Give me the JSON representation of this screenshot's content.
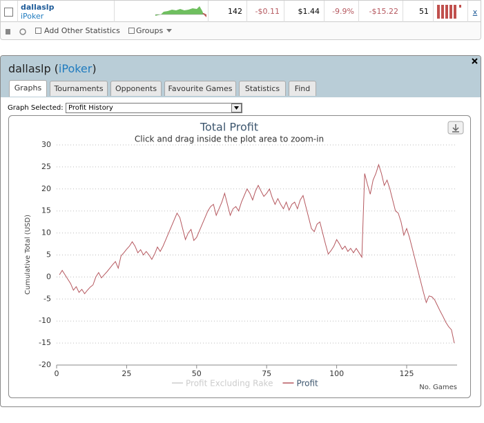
{
  "top_row": {
    "player": "dallaslp",
    "site": "iPoker",
    "cells": [
      "142",
      "-$0.11",
      "$1.44",
      "-9.9%",
      "-$15.22",
      "51"
    ],
    "remove": "x"
  },
  "toolbar": {
    "add": "Add Other Statistics",
    "groups": "Groups"
  },
  "panel": {
    "title_parts": [
      "dallaslp (",
      "iPoker",
      ")"
    ],
    "tabs": [
      "Graphs",
      "Tournaments",
      "Opponents",
      "Favourite Games",
      "Statistics",
      "Find"
    ],
    "graph_label": "Graph Selected:",
    "graph_selected": "Profit History"
  },
  "chart_data": {
    "type": "line",
    "title": "Total Profit",
    "subtitle": "Click and drag inside the plot area to zoom-in",
    "y_label": "Cumulative Total (USD)",
    "x_label": "No. Games",
    "xlim": [
      0,
      143
    ],
    "xticks": [
      0,
      25,
      50,
      75,
      100,
      125
    ],
    "ylim": [
      -20,
      30
    ],
    "yticks": [
      -20,
      -15,
      -10,
      -5,
      0,
      5,
      10,
      15,
      20,
      25,
      30
    ],
    "grid": true,
    "x": [
      1,
      2,
      3,
      4,
      5,
      6,
      7,
      8,
      9,
      10,
      11,
      12,
      13,
      14,
      15,
      16,
      17,
      18,
      19,
      20,
      21,
      22,
      23,
      24,
      25,
      26,
      27,
      28,
      29,
      30,
      31,
      32,
      33,
      34,
      35,
      36,
      37,
      38,
      39,
      40,
      41,
      42,
      43,
      44,
      45,
      46,
      47,
      48,
      49,
      50,
      51,
      52,
      53,
      54,
      55,
      56,
      57,
      58,
      59,
      60,
      61,
      62,
      63,
      64,
      65,
      66,
      67,
      68,
      69,
      70,
      71,
      72,
      73,
      74,
      75,
      76,
      77,
      78,
      79,
      80,
      81,
      82,
      83,
      84,
      85,
      86,
      87,
      88,
      89,
      90,
      91,
      92,
      93,
      94,
      95,
      96,
      97,
      98,
      99,
      100,
      101,
      102,
      103,
      104,
      105,
      106,
      107,
      108,
      109,
      110,
      111,
      112,
      113,
      114,
      115,
      116,
      117,
      118,
      119,
      120,
      121,
      122,
      123,
      124,
      125,
      126,
      127,
      128,
      129,
      130,
      131,
      132,
      133,
      134,
      135,
      136,
      137,
      138,
      139,
      140,
      141,
      142
    ],
    "series": [
      {
        "name": "Profit Excluding Rake",
        "color": "#cccccc",
        "visible": false
      },
      {
        "name": "Profit",
        "color": "#b5575e",
        "visible": true,
        "values": [
          0.5,
          1.5,
          0.5,
          -0.5,
          -1.5,
          -3,
          -2.2,
          -3.5,
          -2.8,
          -3.8,
          -3,
          -2.3,
          -1.8,
          0,
          1,
          -0.2,
          0.5,
          1.2,
          2,
          2.8,
          3.5,
          2,
          4.8,
          5.5,
          6.3,
          7,
          8,
          7,
          5.5,
          6.2,
          5,
          5.8,
          5,
          4,
          5.2,
          6.8,
          5.8,
          7,
          8.5,
          10,
          11.5,
          13,
          14.5,
          13.5,
          11,
          8.5,
          10,
          10.8,
          8.3,
          9,
          10.5,
          12,
          13.5,
          15,
          16,
          16.5,
          14,
          15.5,
          17,
          19,
          16.5,
          14,
          15.5,
          16,
          15,
          17,
          18.5,
          20,
          19,
          17.5,
          19.5,
          20.8,
          19.5,
          18.3,
          19,
          20,
          18,
          16.5,
          17.8,
          16.5,
          15.5,
          17,
          15.2,
          16.5,
          17,
          15.5,
          17.5,
          18.5,
          16,
          13.5,
          11,
          10.3,
          12,
          12.5,
          10,
          7.5,
          5.2,
          6,
          7,
          8.5,
          7.5,
          6.3,
          7,
          5.8,
          6.5,
          5.5,
          6.5,
          5.5,
          4.5,
          23.5,
          21,
          18.8,
          22,
          23.5,
          25.5,
          23.5,
          20.8,
          22,
          20,
          17.5,
          15,
          14.5,
          12.5,
          9.5,
          11,
          9,
          6.5,
          4,
          1.5,
          -1,
          -3.5,
          -5.8,
          -4.3,
          -4.5,
          -5.2,
          -6.5,
          -7.8,
          -9,
          -10.3,
          -11.3,
          -12,
          -15
        ]
      }
    ]
  }
}
